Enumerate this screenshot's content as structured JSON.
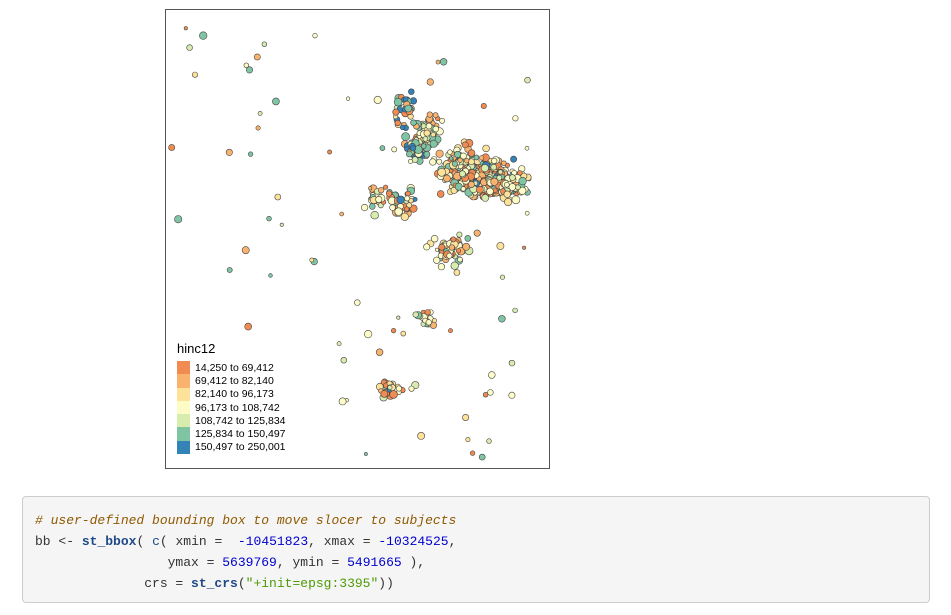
{
  "map": {
    "legend": {
      "title": "hinc12",
      "classes": [
        {
          "label": "14,250 to 69,412",
          "color": "#f08c52"
        },
        {
          "label": "69,412 to 82,140",
          "color": "#f9b36e"
        },
        {
          "label": "82,140 to 96,173",
          "color": "#fde29a"
        },
        {
          "label": "96,173 to 108,742",
          "color": "#fdfbc6"
        },
        {
          "label": "108,742 to 125,834",
          "color": "#d8ecae"
        },
        {
          "label": "125,834 to 150,497",
          "color": "#7fc5a4"
        },
        {
          "label": "150,497 to 250,001",
          "color": "#3483b7"
        }
      ]
    }
  },
  "code": {
    "comment": "# user-defined bounding box to move slocer to subjects",
    "line2": {
      "var": "bb",
      "assign": "<-",
      "fn1": "st_bbox",
      "fn2": "c",
      "xmin_key": "xmin",
      "xmin_val": "-10451823",
      "xmax_key": "xmax",
      "xmax_val": "-10324525"
    },
    "line3": {
      "ymax_key": "ymax",
      "ymax_val": "5639769",
      "ymin_key": "ymin",
      "ymin_val": "5491665"
    },
    "line4": {
      "crs_key": "crs",
      "fn": "st_crs",
      "crs_val": "\"+init=epsg:3395\""
    }
  }
}
